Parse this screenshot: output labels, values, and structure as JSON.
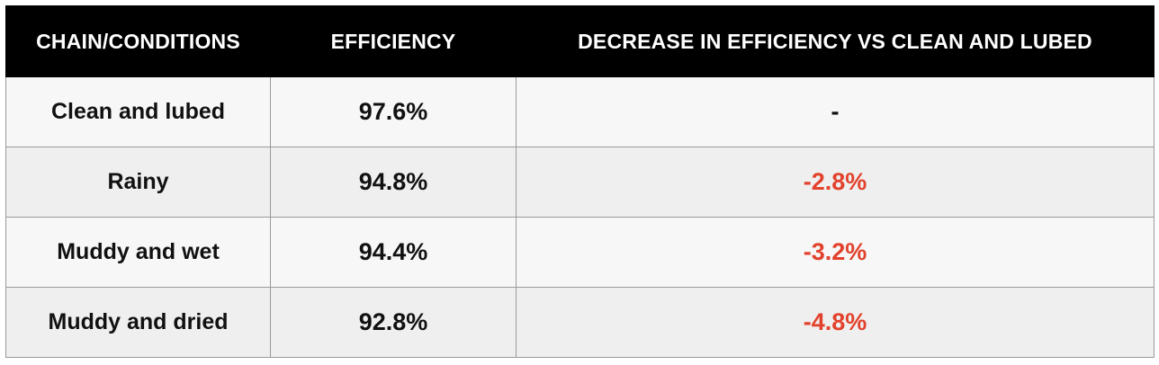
{
  "colors": {
    "header_bg": "#000000",
    "header_text": "#ffffff",
    "row_odd": "#f7f7f7",
    "row_even": "#efefef",
    "negative": "#e2422c"
  },
  "chart_data": {
    "type": "table",
    "columns": [
      "CHAIN/CONDITIONS",
      "EFFICIENCY",
      "DECREASE IN EFFICIENCY VS CLEAN AND LUBED"
    ],
    "rows": [
      {
        "condition": "Clean and lubed",
        "efficiency": "97.6%",
        "decrease": "-",
        "negative": false
      },
      {
        "condition": "Rainy",
        "efficiency": "94.8%",
        "decrease": "-2.8%",
        "negative": true
      },
      {
        "condition": "Muddy and wet",
        "efficiency": "94.4%",
        "decrease": "-3.2%",
        "negative": true
      },
      {
        "condition": "Muddy and dried",
        "efficiency": "92.8%",
        "decrease": "-4.8%",
        "negative": true
      }
    ]
  }
}
